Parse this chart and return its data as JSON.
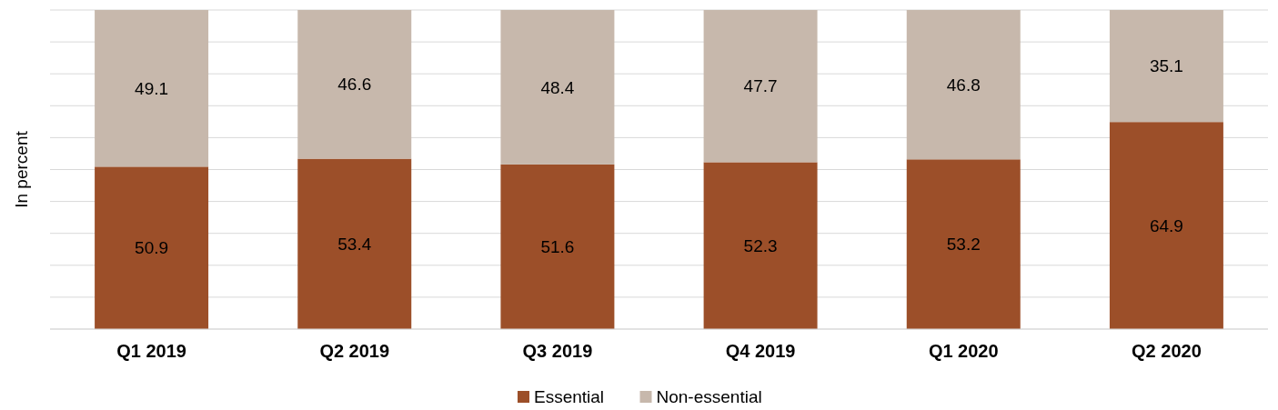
{
  "chart_data": {
    "type": "bar",
    "stacked": true,
    "ylabel": "In percent",
    "categories": [
      "Q1 2019",
      "Q2 2019",
      "Q3 2019",
      "Q4 2019",
      "Q1 2020",
      "Q2 2020"
    ],
    "series": [
      {
        "name": "Essential",
        "color": "#9c4f29",
        "values": [
          50.9,
          53.4,
          51.6,
          52.3,
          53.2,
          64.9
        ]
      },
      {
        "name": "Non-essential",
        "color": "#c7b8ac",
        "values": [
          49.1,
          46.6,
          48.4,
          47.7,
          46.8,
          35.1
        ]
      }
    ],
    "ylim": [
      0,
      100
    ],
    "yticks": [
      {
        "value": 0,
        "label": null
      },
      {
        "value": 10,
        "label": null
      },
      {
        "value": 20,
        "label": null
      },
      {
        "value": 30,
        "label": null
      },
      {
        "value": 40,
        "label": null
      },
      {
        "value": 50,
        "label": null
      },
      {
        "value": 60,
        "label": null
      },
      {
        "value": 70,
        "label": null
      },
      {
        "value": 80,
        "label": null
      },
      {
        "value": 90,
        "label": null
      },
      {
        "value": 100,
        "label": null
      }
    ],
    "tick_labels": "x",
    "grid": "y",
    "data_labels": true,
    "legend": "bottom"
  }
}
